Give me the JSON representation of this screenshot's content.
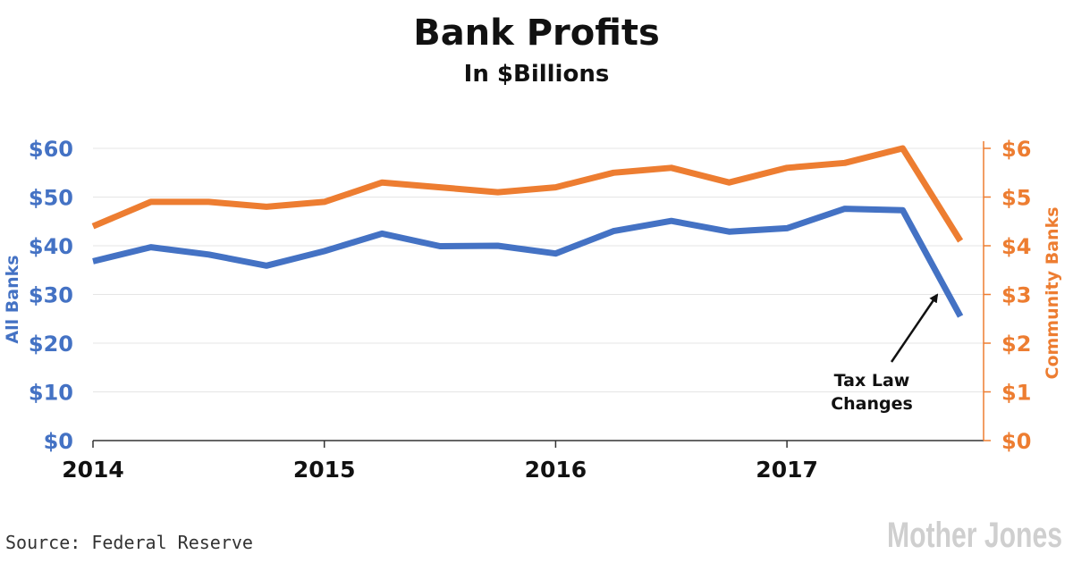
{
  "chart_data": {
    "type": "line",
    "title": "Bank Profits",
    "subtitle": "In $Billions",
    "ylabel_left": "All Banks",
    "ylabel_right": "Community Banks",
    "ylim_left": [
      0,
      60
    ],
    "ylim_right": [
      0,
      6
    ],
    "yticks_left": [
      "$0",
      "$10",
      "$20",
      "$30",
      "$40",
      "$50",
      "$60"
    ],
    "yticks_right": [
      "$0",
      "$1",
      "$2",
      "$3",
      "$4",
      "$5",
      "$6"
    ],
    "xlim": [
      2014,
      2017.85
    ],
    "xticks": [
      "2014",
      "2015",
      "2016",
      "2017"
    ],
    "grid": true,
    "series": [
      {
        "name": "All Banks",
        "axis": "left",
        "color": "#4472C4",
        "x": [
          2014.0,
          2014.25,
          2014.5,
          2014.75,
          2015.0,
          2015.25,
          2015.5,
          2015.75,
          2016.0,
          2016.25,
          2016.5,
          2016.75,
          2017.0,
          2017.25,
          2017.5,
          2017.75
        ],
        "values": [
          36.8,
          39.7,
          38.2,
          35.9,
          38.9,
          42.5,
          39.9,
          40.0,
          38.4,
          43.0,
          45.1,
          42.9,
          43.6,
          47.6,
          47.3,
          25.5
        ]
      },
      {
        "name": "Community Banks",
        "axis": "right",
        "color": "#ED7D31",
        "x": [
          2014.0,
          2014.25,
          2014.5,
          2014.75,
          2015.0,
          2015.25,
          2015.5,
          2015.75,
          2016.0,
          2016.25,
          2016.5,
          2016.75,
          2017.0,
          2017.25,
          2017.5,
          2017.75
        ],
        "values": [
          4.4,
          4.9,
          4.9,
          4.8,
          4.9,
          5.3,
          5.2,
          5.1,
          5.2,
          5.5,
          5.6,
          5.3,
          5.6,
          5.7,
          6.0,
          4.1
        ]
      }
    ],
    "annotations": [
      {
        "text_line1": "Tax Law",
        "text_line2": "Changes",
        "points_to_x": 2017.65,
        "points_to_value_left": 30.5
      }
    ],
    "source": "Source: Federal Reserve",
    "logo": "Mother Jones"
  },
  "colors": {
    "left_axis": "#4472C4",
    "right_axis": "#ED7D31",
    "grid": "#e5e5e5",
    "axis": "#333333",
    "text": "#111111",
    "logo": "#cfcfcf"
  }
}
